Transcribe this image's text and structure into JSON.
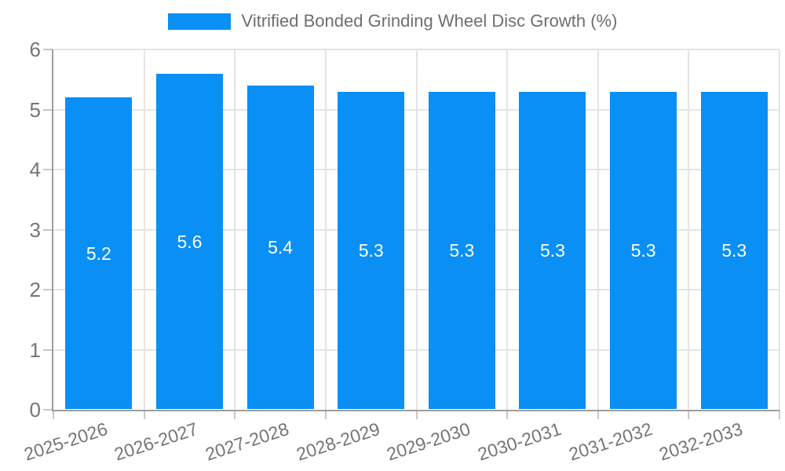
{
  "legend": {
    "label": "Vitrified Bonded Grinding Wheel Disc Growth (%)"
  },
  "chart_data": {
    "type": "bar",
    "title": "Vitrified Bonded Grinding Wheel Disc Growth (%)",
    "categories": [
      "2025-2026",
      "2026-2027",
      "2027-2028",
      "2028-2029",
      "2029-2030",
      "2030-2031",
      "2031-2032",
      "2032-2033"
    ],
    "series": [
      {
        "name": "Vitrified Bonded Grinding Wheel Disc Growth (%)",
        "values": [
          5.2,
          5.6,
          5.4,
          5.3,
          5.3,
          5.3,
          5.3,
          5.3
        ]
      }
    ],
    "value_labels": [
      "5.2",
      "5.6",
      "5.4",
      "5.3",
      "5.3",
      "5.3",
      "5.3",
      "5.3"
    ],
    "xlabel": "",
    "ylabel": "",
    "ylim": [
      0,
      6
    ],
    "yticks": [
      "0",
      "1",
      "2",
      "3",
      "4",
      "5",
      "6"
    ],
    "grid": true,
    "legend_position": "top",
    "x_label_rotation_deg": -18,
    "colors": {
      "bar": "#0a8ff5",
      "value_label": "#ffffff",
      "grid": "#e4e4e4",
      "axis": "#9e9e9e",
      "tick": "#c8c8c8",
      "tick_text": "#757575",
      "legend_text": "#6e6e6e",
      "background": "#ffffff"
    }
  }
}
